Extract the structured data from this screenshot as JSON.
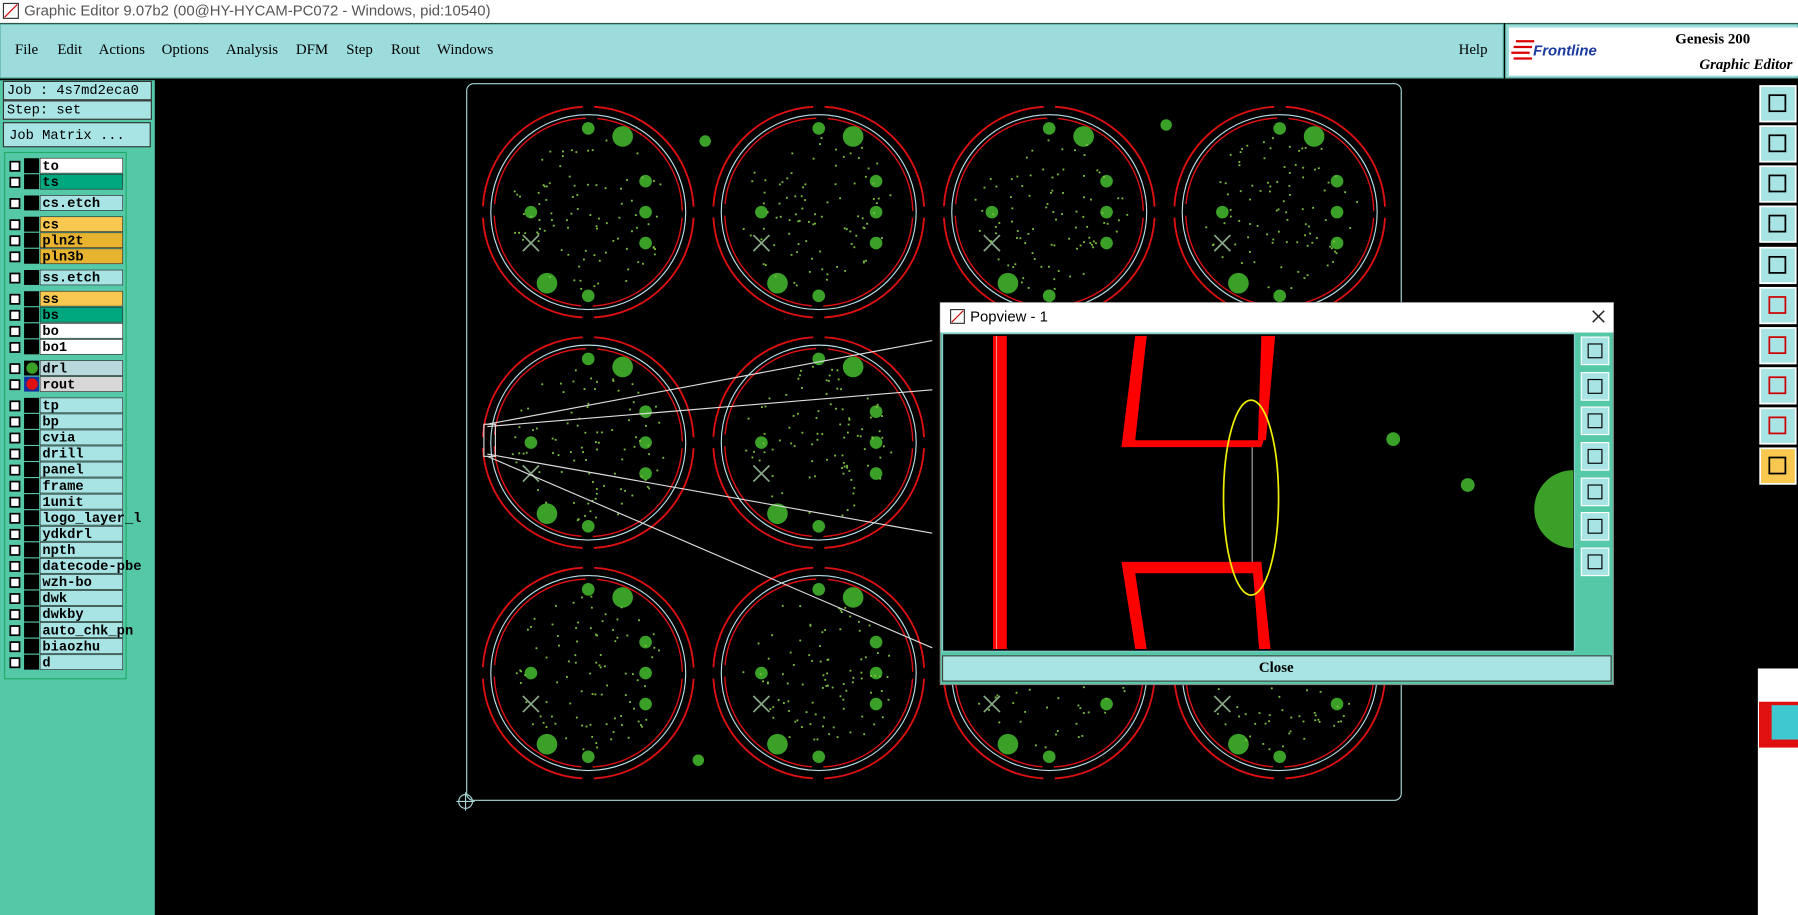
{
  "window": {
    "title": "Graphic Editor 9.07b2 (00@HY-HYCAM-PC072 - Windows, pid:10540)"
  },
  "menu": [
    "File",
    "Edit",
    "Actions",
    "Options",
    "Analysis",
    "DFM",
    "Step",
    "Rout",
    "Windows"
  ],
  "help": "Help",
  "logo": {
    "brand": "Frontline",
    "product": "Genesis 200",
    "subtitle": "Graphic Editor"
  },
  "job": "Job : 4s7md2eca0",
  "step": "Step: set",
  "job_matrix": "Job Matrix ...",
  "layer_groups": [
    [
      {
        "name": "to",
        "color": "#ffffff"
      },
      {
        "name": "ts",
        "color": "#00a880"
      }
    ],
    [
      {
        "name": "cs.etch",
        "color": "#a8e4e4"
      }
    ],
    [
      {
        "name": "cs",
        "color": "#f8c850"
      },
      {
        "name": "pln2t",
        "color": "#e8b430"
      },
      {
        "name": "pln3b",
        "color": "#e8b430"
      }
    ],
    [
      {
        "name": "ss.etch",
        "color": "#a8e4e4"
      }
    ],
    [
      {
        "name": "ss",
        "color": "#f8c850"
      },
      {
        "name": "bs",
        "color": "#00a880"
      },
      {
        "name": "bo",
        "color": "#ffffff"
      },
      {
        "name": "bo1",
        "color": "#ffffff"
      }
    ],
    [
      {
        "name": "drl",
        "color": "#b8d8dc",
        "marker": "#3aa028"
      },
      {
        "name": "rout",
        "color": "#d8d8d8",
        "marker": "#e01010"
      }
    ],
    [
      {
        "name": "tp",
        "color": "#a8e4e4"
      },
      {
        "name": "bp",
        "color": "#a8e4e4"
      },
      {
        "name": "cvia",
        "color": "#a8e4e4"
      },
      {
        "name": "drill",
        "color": "#a8e4e4"
      },
      {
        "name": "panel",
        "color": "#a8e4e4"
      },
      {
        "name": "frame",
        "color": "#a8e4e4"
      },
      {
        "name": "1unit",
        "color": "#a8e4e4"
      },
      {
        "name": "logo_layer_l",
        "color": "#a8e4e4"
      },
      {
        "name": "ydkdrl",
        "color": "#a8e4e4"
      },
      {
        "name": "npth",
        "color": "#a8e4e4"
      },
      {
        "name": "datecode-pbe",
        "color": "#a8e4e4"
      },
      {
        "name": "wzh-bo",
        "color": "#a8e4e4"
      },
      {
        "name": "dwk",
        "color": "#a8e4e4"
      },
      {
        "name": "dwkby",
        "color": "#a8e4e4"
      },
      {
        "name": "auto_chk_pn",
        "color": "#a8e4e4"
      },
      {
        "name": "biaozhu",
        "color": "#a8e4e4"
      },
      {
        "name": "d",
        "color": "#a8e4e4"
      }
    ]
  ],
  "popview": {
    "title": "Popview - 1",
    "close": "Close"
  }
}
